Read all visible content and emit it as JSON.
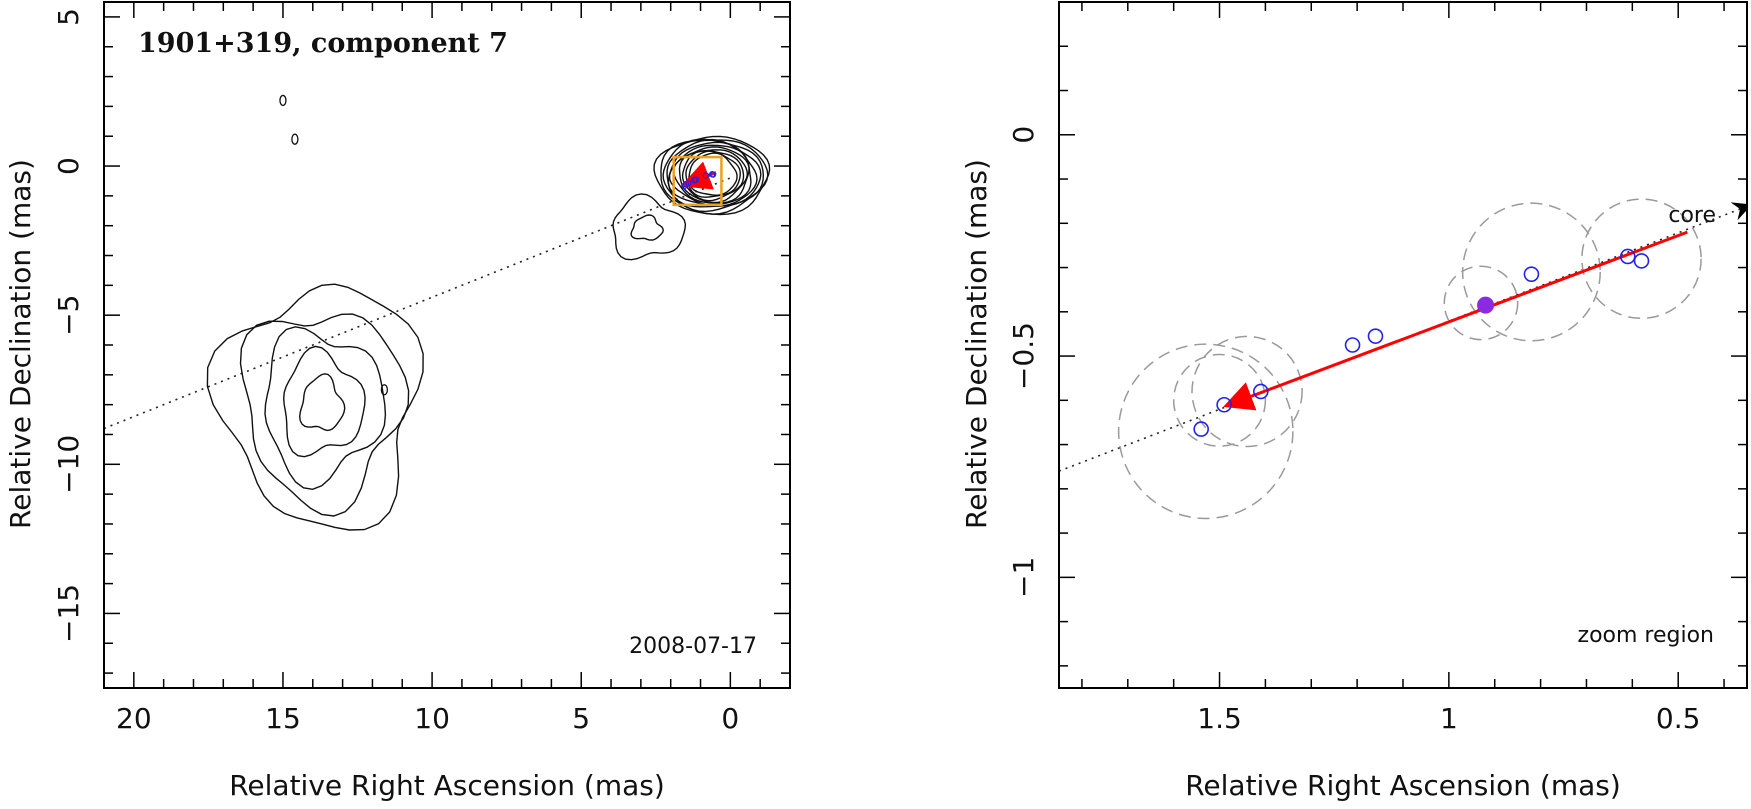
{
  "chart_data": [
    {
      "type": "contour",
      "title": "1901+319, component 7",
      "date_label": "2008-07-17",
      "xlabel": "Relative Right Ascension (mas)",
      "ylabel": "Relative Declination (mas)",
      "xlim": [
        21,
        -2
      ],
      "ylim": [
        -17.5,
        5.5
      ],
      "xticks_major": [
        20,
        15,
        10,
        5,
        0
      ],
      "xtick_labels": [
        "20",
        "15",
        "10",
        "5",
        "0"
      ],
      "yticks_major": [
        5,
        0,
        -5,
        -10,
        -15
      ],
      "ytick_labels": [
        "5",
        "0",
        "−5",
        "−10",
        "−15"
      ],
      "jet_axis": {
        "from": [
          21,
          -8.8
        ],
        "to": [
          0,
          -0.4
        ]
      },
      "zoom_box": {
        "x": [
          1.9,
          0.3
        ],
        "y": [
          -1.3,
          0.3
        ]
      },
      "component_track": {
        "from": [
          0.48,
          -0.22
        ],
        "to": [
          1.48,
          -0.61
        ]
      },
      "contours": [
        {
          "name": "core-blob",
          "levels": 11,
          "center": [
            0.6,
            -0.3
          ],
          "rx": [
            0.8,
            1.9
          ],
          "ry": [
            0.7,
            1.3
          ]
        },
        {
          "name": "knot-east",
          "levels": 2,
          "center": [
            2.8,
            -2.1
          ],
          "rx": [
            0.5,
            1.2
          ],
          "ry": [
            0.4,
            1.0
          ]
        },
        {
          "name": "lobe-south",
          "levels": 5,
          "center": [
            13.7,
            -8.0
          ],
          "rx": [
            0.7,
            3.3
          ],
          "ry": [
            0.9,
            4.0
          ]
        }
      ]
    },
    {
      "type": "scatter",
      "title": "zoom region",
      "xlabel": "Relative Right Ascension (mas)",
      "ylabel": "Relative Declination (mas)",
      "xlim": [
        1.85,
        0.35
      ],
      "ylim": [
        -1.25,
        0.3
      ],
      "xticks_major": [
        1.5,
        1,
        0.5
      ],
      "xtick_labels": [
        "1.5",
        "1",
        "0.5"
      ],
      "yticks_major": [
        0,
        -0.5,
        -1
      ],
      "ytick_labels": [
        "0",
        "−0.5",
        "−1"
      ],
      "core_label": "core",
      "jet_axis": {
        "from": [
          1.85,
          -0.76
        ],
        "to": [
          0.35,
          -0.16
        ]
      },
      "component_positions": [
        {
          "x": 1.54,
          "y": -0.665
        },
        {
          "x": 1.49,
          "y": -0.61
        },
        {
          "x": 1.41,
          "y": -0.58
        },
        {
          "x": 1.21,
          "y": -0.475
        },
        {
          "x": 1.16,
          "y": -0.455
        },
        {
          "x": 0.82,
          "y": -0.315
        },
        {
          "x": 0.61,
          "y": -0.275
        },
        {
          "x": 0.58,
          "y": -0.285
        }
      ],
      "highlight_position": {
        "x": 0.92,
        "y": -0.385
      },
      "uncertainty_circles": [
        {
          "x": 1.53,
          "y": -0.67,
          "r": 0.19
        },
        {
          "x": 1.44,
          "y": -0.58,
          "r": 0.12
        },
        {
          "x": 1.5,
          "y": -0.6,
          "r": 0.1
        },
        {
          "x": 0.82,
          "y": -0.31,
          "r": 0.15
        },
        {
          "x": 0.93,
          "y": -0.38,
          "r": 0.08
        },
        {
          "x": 0.58,
          "y": -0.28,
          "r": 0.13
        }
      ],
      "track": {
        "from": [
          0.48,
          -0.22
        ],
        "to": [
          1.48,
          -0.61
        ]
      }
    }
  ],
  "colors": {
    "track": "#ff0000",
    "component": "#2222ee",
    "highlight": "#8a2be2",
    "zoom_box": "#f0a020",
    "uncertainty": "#9a9a9a",
    "axis": "#000000"
  }
}
